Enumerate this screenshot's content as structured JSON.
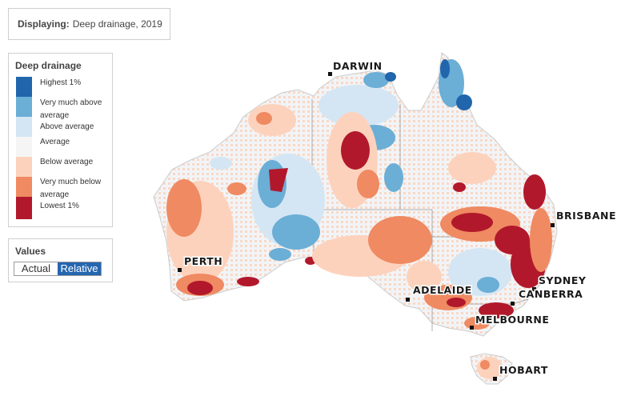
{
  "display": {
    "label": "Displaying:",
    "value": "Deep drainage, 2019"
  },
  "legend": {
    "title": "Deep drainage",
    "items": [
      {
        "label": "Highest 1%",
        "color": "#2166ac"
      },
      {
        "label": "Very much above average",
        "color": "#6baed6"
      },
      {
        "label": "Above average",
        "color": "#d4e6f4"
      },
      {
        "label": "Average",
        "color": "#f5f5f5"
      },
      {
        "label": "Below average",
        "color": "#fdd2bc"
      },
      {
        "label": "Very much below average",
        "color": "#ef8a62"
      },
      {
        "label": "Lowest 1%",
        "color": "#b2182b"
      }
    ]
  },
  "values": {
    "title": "Values",
    "actual": "Actual",
    "relative": "Relative",
    "selected": "Relative"
  },
  "cities": {
    "darwin": "DARWIN",
    "brisbane": "BRISBANE",
    "perth": "PERTH",
    "sydney": "SYDNEY",
    "canberra": "CANBERRA",
    "adelaide": "ADELAIDE",
    "melbourne": "MELBOURNE",
    "hobart": "HOBART"
  }
}
